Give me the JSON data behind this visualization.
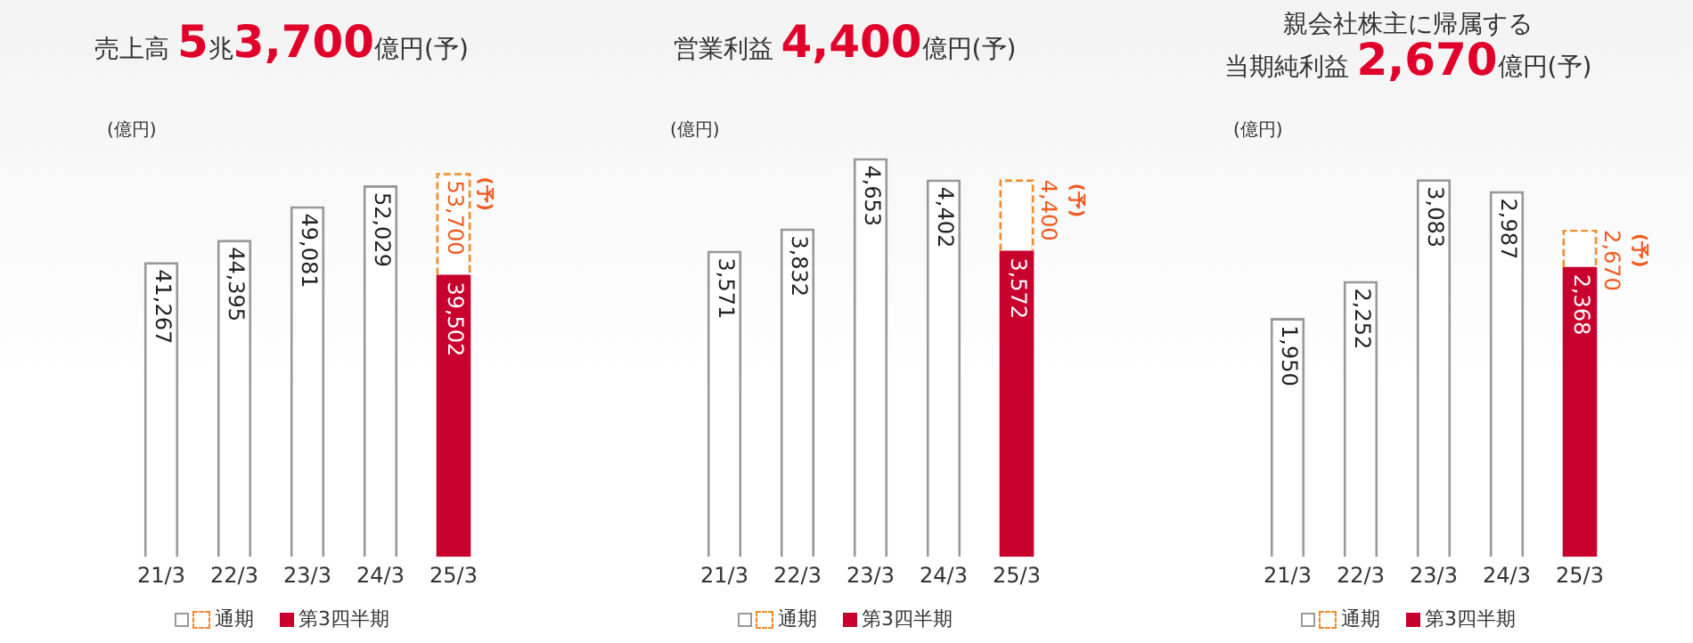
{
  "chart_data": [
    {
      "type": "bar",
      "title": "売上高 5兆3,700億円(予)",
      "ylabel": "(億円)",
      "categories": [
        "21/3",
        "22/3",
        "23/3",
        "24/3",
        "25/3"
      ],
      "legend": "bottom",
      "tick_labels": "x",
      "series": [
        {
          "name": "通期",
          "color": "#ffffff",
          "values": [
            41267,
            44395,
            49081,
            52029,
            53700
          ],
          "value_labels": [
            "41,267",
            "44,395",
            "49,081",
            "52,029",
            "53,700"
          ]
        },
        {
          "name": "第3四半期",
          "color": "#c8002d",
          "values": [
            null,
            null,
            null,
            null,
            39502
          ],
          "value_labels": [
            null,
            null,
            null,
            null,
            "39,502"
          ]
        }
      ],
      "annotations": [
        {
          "text": "(予)",
          "x": "25/3",
          "y": 53700
        }
      ]
    },
    {
      "type": "bar",
      "title": "営業利益 4,400億円(予)",
      "ylabel": "(億円)",
      "categories": [
        "21/3",
        "22/3",
        "23/3",
        "24/3",
        "25/3"
      ],
      "legend": "bottom",
      "tick_labels": "x",
      "series": [
        {
          "name": "通期",
          "color": "#ffffff",
          "values": [
            3571,
            3832,
            4653,
            4402,
            4400
          ],
          "value_labels": [
            "3,571",
            "3,832",
            "4,653",
            "4,402",
            "4,400"
          ]
        },
        {
          "name": "第3四半期",
          "color": "#c8002d",
          "values": [
            null,
            null,
            null,
            null,
            3572
          ],
          "value_labels": [
            null,
            null,
            null,
            null,
            "3,572"
          ]
        }
      ],
      "annotations": [
        {
          "text": "(予)",
          "x": "25/3",
          "y": 4400
        }
      ]
    },
    {
      "type": "bar",
      "title": "親会社株主に帰属する",
      "subtitle": "当期純利益 2,670億円(予)",
      "ylabel": "(億円)",
      "categories": [
        "21/3",
        "22/3",
        "23/3",
        "24/3",
        "25/3"
      ],
      "legend": "bottom",
      "tick_labels": "x",
      "series": [
        {
          "name": "通期",
          "color": "#ffffff",
          "values": [
            1950,
            2252,
            3083,
            2987,
            2670
          ],
          "value_labels": [
            "1,950",
            "2,252",
            "3,083",
            "2,987",
            "2,670"
          ]
        },
        {
          "name": "第3四半期",
          "color": "#c8002d",
          "values": [
            null,
            null,
            null,
            null,
            2368
          ],
          "value_labels": [
            null,
            null,
            null,
            null,
            "2,368"
          ]
        }
      ],
      "annotations": [
        {
          "text": "(予)",
          "x": "25/3",
          "y": 2670
        }
      ]
    }
  ]
}
